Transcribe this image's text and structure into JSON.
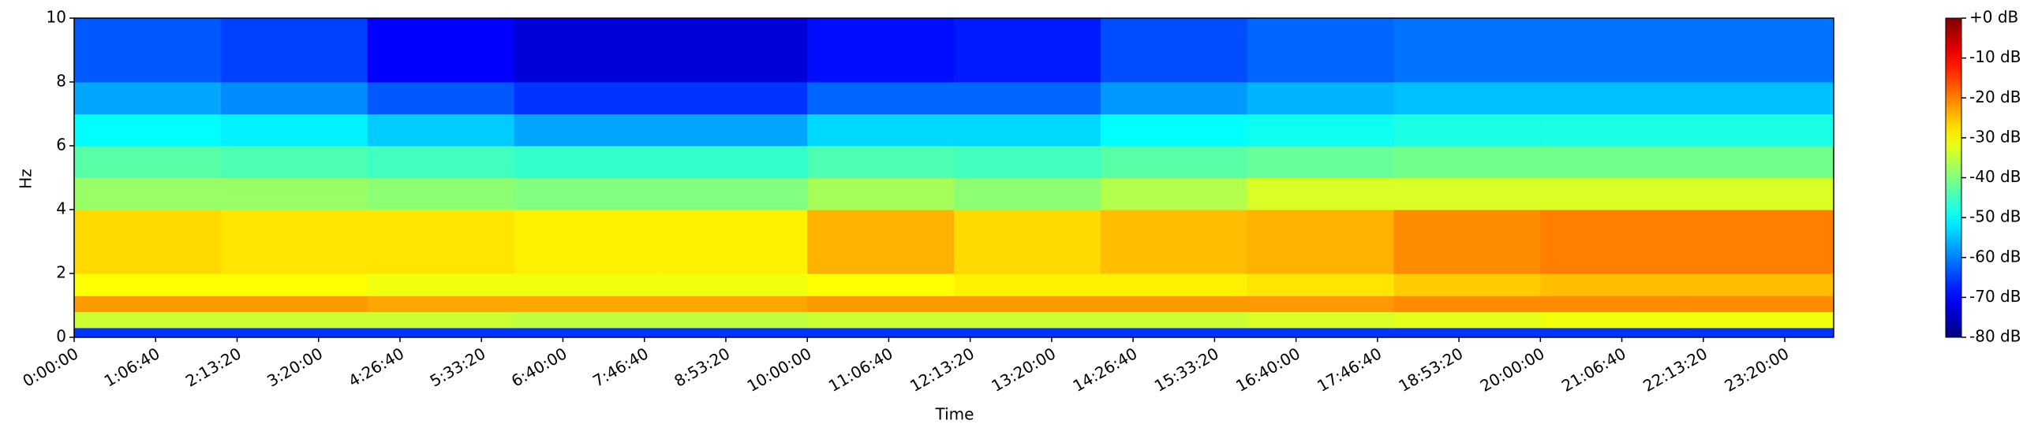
{
  "chart_data": {
    "type": "heatmap",
    "colormap": "jet",
    "xlabel": "Time",
    "ylabel": "Hz",
    "xlim": [
      0,
      86400
    ],
    "ylim": [
      0,
      10
    ],
    "xticks": [
      {
        "value": 0,
        "label": "0:00:00"
      },
      {
        "value": 4000,
        "label": "1:06:40"
      },
      {
        "value": 8000,
        "label": "2:13:20"
      },
      {
        "value": 12000,
        "label": "3:20:00"
      },
      {
        "value": 16000,
        "label": "4:26:40"
      },
      {
        "value": 20000,
        "label": "5:33:20"
      },
      {
        "value": 24000,
        "label": "6:40:00"
      },
      {
        "value": 28000,
        "label": "7:46:40"
      },
      {
        "value": 32000,
        "label": "8:53:20"
      },
      {
        "value": 36000,
        "label": "10:00:00"
      },
      {
        "value": 40000,
        "label": "11:06:40"
      },
      {
        "value": 44000,
        "label": "12:13:20"
      },
      {
        "value": 48000,
        "label": "13:20:00"
      },
      {
        "value": 52000,
        "label": "14:26:40"
      },
      {
        "value": 56000,
        "label": "15:33:20"
      },
      {
        "value": 60000,
        "label": "16:40:00"
      },
      {
        "value": 64000,
        "label": "17:46:40"
      },
      {
        "value": 68000,
        "label": "18:53:20"
      },
      {
        "value": 72000,
        "label": "20:00:00"
      },
      {
        "value": 76000,
        "label": "21:06:40"
      },
      {
        "value": 80000,
        "label": "22:13:20"
      },
      {
        "value": 84000,
        "label": "23:20:00"
      }
    ],
    "yticks": [
      0,
      2,
      4,
      6,
      8,
      10
    ],
    "clim": [
      -80,
      0
    ],
    "cticks": [
      {
        "value": 0,
        "label": "+0 dB"
      },
      {
        "value": -10,
        "label": "-10 dB"
      },
      {
        "value": -20,
        "label": "-20 dB"
      },
      {
        "value": -30,
        "label": "-30 dB"
      },
      {
        "value": -40,
        "label": "-40 dB"
      },
      {
        "value": -50,
        "label": "-50 dB"
      },
      {
        "value": -60,
        "label": "-60 dB"
      },
      {
        "value": -70,
        "label": "-70 dB"
      },
      {
        "value": -80,
        "label": "-80 dB"
      }
    ],
    "x_bins": [
      0,
      7200,
      14400,
      21600,
      28800,
      36000,
      43200,
      50400,
      57600,
      64800,
      72000,
      79200,
      86400
    ],
    "y_bins": [
      0,
      0.3,
      0.8,
      1.3,
      2,
      4,
      5,
      6,
      7,
      8,
      10
    ],
    "z": [
      [
        -66,
        -66,
        -66,
        -66,
        -66,
        -66,
        -66,
        -66,
        -66,
        -66,
        -66,
        -66
      ],
      [
        -34,
        -34,
        -34,
        -35,
        -35,
        -34,
        -34,
        -34,
        -33,
        -32,
        -31,
        -31
      ],
      [
        -22,
        -22,
        -23,
        -23,
        -23,
        -22,
        -22,
        -22,
        -22,
        -21,
        -21,
        -21
      ],
      [
        -30,
        -30,
        -31,
        -31,
        -31,
        -30,
        -29,
        -29,
        -28,
        -26,
        -25,
        -25
      ],
      [
        -27,
        -28,
        -28,
        -29,
        -29,
        -24,
        -27,
        -25,
        -24,
        -21,
        -20,
        -20
      ],
      [
        -38,
        -38,
        -39,
        -40,
        -40,
        -37,
        -39,
        -36,
        -33,
        -33,
        -33,
        -33
      ],
      [
        -43,
        -44,
        -45,
        -46,
        -46,
        -44,
        -45,
        -43,
        -42,
        -41,
        -41,
        -41
      ],
      [
        -50,
        -51,
        -54,
        -57,
        -57,
        -53,
        -53,
        -50,
        -49,
        -48,
        -48,
        -48
      ],
      [
        -57,
        -59,
        -63,
        -66,
        -66,
        -62,
        -62,
        -58,
        -56,
        -55,
        -55,
        -55
      ],
      [
        -63,
        -65,
        -70,
        -73,
        -73,
        -69,
        -68,
        -64,
        -62,
        -61,
        -61,
        -61
      ]
    ]
  }
}
